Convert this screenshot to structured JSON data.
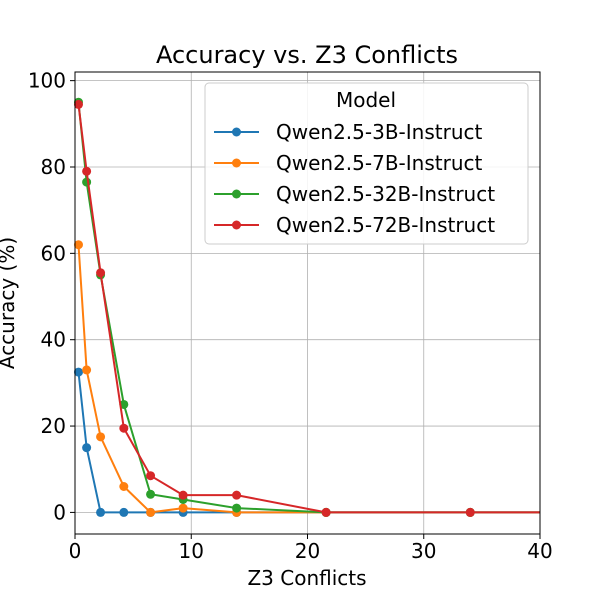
{
  "chart_data": {
    "type": "line",
    "title": "Accuracy vs. Z3 Conflicts",
    "xlabel": "Z3 Conflicts",
    "ylabel": "Accuracy (%)",
    "xlim": [
      0,
      40
    ],
    "ylim": [
      -5,
      102
    ],
    "xticks": [
      0,
      10,
      20,
      30,
      40
    ],
    "yticks": [
      0,
      20,
      40,
      60,
      80,
      100
    ],
    "grid": true,
    "legend": {
      "title": "Model",
      "placement": "top-right"
    },
    "series": [
      {
        "name": "Qwen2.5-3B-Instruct",
        "color": "#1f77b4",
        "points": [
          [
            0.3,
            32.5
          ],
          [
            1.0,
            15.0
          ],
          [
            2.2,
            0.0
          ],
          [
            4.2,
            0.0
          ],
          [
            6.5,
            0.0
          ],
          [
            9.3,
            0.0
          ],
          [
            13.9,
            0.0
          ],
          [
            21.6,
            0.0
          ],
          [
            34.0,
            0.0
          ],
          [
            40.0,
            0.0
          ]
        ]
      },
      {
        "name": "Qwen2.5-7B-Instruct",
        "color": "#ff7f0e",
        "points": [
          [
            0.3,
            62.0
          ],
          [
            1.0,
            33.0
          ],
          [
            2.2,
            17.5
          ],
          [
            4.2,
            6.0
          ],
          [
            6.5,
            0.0
          ],
          [
            9.3,
            1.0
          ],
          [
            13.9,
            0.0
          ],
          [
            21.6,
            0.0
          ],
          [
            34.0,
            0.0
          ],
          [
            40.0,
            0.0
          ]
        ]
      },
      {
        "name": "Qwen2.5-32B-Instruct",
        "color": "#2ca02c",
        "points": [
          [
            0.3,
            95.0
          ],
          [
            1.0,
            76.5
          ],
          [
            2.2,
            55.0
          ],
          [
            4.2,
            25.0
          ],
          [
            6.5,
            4.2
          ],
          [
            9.3,
            3.0
          ],
          [
            13.9,
            1.0
          ],
          [
            21.6,
            0.0
          ],
          [
            34.0,
            0.0
          ],
          [
            40.0,
            0.0
          ]
        ]
      },
      {
        "name": "Qwen2.5-72B-Instruct",
        "color": "#d62728",
        "points": [
          [
            0.3,
            94.5
          ],
          [
            1.0,
            79.0
          ],
          [
            2.2,
            55.5
          ],
          [
            4.2,
            19.5
          ],
          [
            6.5,
            8.5
          ],
          [
            9.3,
            4.0
          ],
          [
            13.9,
            4.0
          ],
          [
            21.6,
            0.0
          ],
          [
            34.0,
            0.0
          ],
          [
            40.0,
            0.0
          ]
        ]
      }
    ]
  }
}
